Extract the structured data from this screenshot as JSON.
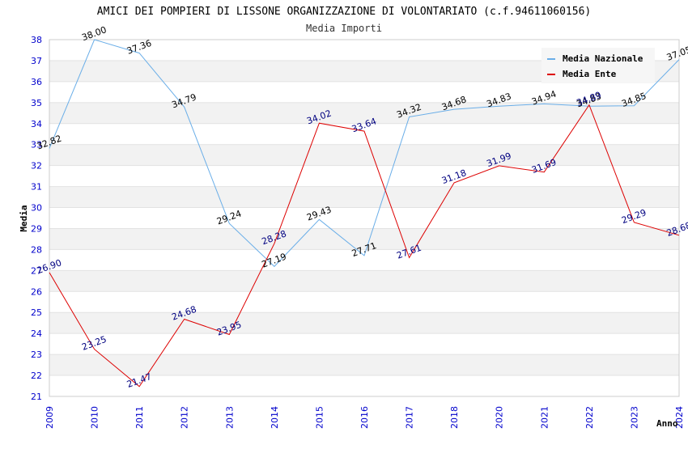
{
  "chart_data": {
    "type": "line",
    "title": "AMICI DEI POMPIERI DI LISSONE ORGANIZZAZIONE DI VOLONTARIATO (c.f.94611060156)",
    "subtitle": "Media Importi",
    "xlabel": "Anno",
    "ylabel": "Media",
    "categories": [
      "2009",
      "2010",
      "2011",
      "2012",
      "2013",
      "2014",
      "2015",
      "2016",
      "2017",
      "2018",
      "2020",
      "2021",
      "2022",
      "2023",
      "2024"
    ],
    "ylim": [
      21,
      38
    ],
    "yticks": [
      21,
      22,
      23,
      24,
      25,
      26,
      27,
      28,
      29,
      30,
      31,
      32,
      33,
      34,
      35,
      36,
      37,
      38
    ],
    "grid": "horizontal alternating bands",
    "legend_position": "top-right",
    "series": [
      {
        "name": "Media Nazionale",
        "color": "#6aaee8",
        "label_color": "#000000",
        "values": [
          32.82,
          38.0,
          37.36,
          34.79,
          29.24,
          27.19,
          29.43,
          27.71,
          34.32,
          34.68,
          34.83,
          34.94,
          34.83,
          34.85,
          37.05
        ],
        "labels": [
          "32.82",
          "38.00",
          "37.36",
          "34.79",
          "29.24",
          "27.19",
          "29.43",
          "27.71",
          "34.32",
          "34.68",
          "34.83",
          "34.94",
          "34.83",
          "34.85",
          "37.05"
        ]
      },
      {
        "name": "Media Ente",
        "color": "#dd0000",
        "label_color": "#000080",
        "values": [
          26.9,
          23.25,
          21.47,
          24.68,
          23.95,
          28.28,
          34.02,
          33.64,
          27.61,
          31.18,
          31.99,
          31.69,
          34.89,
          29.29,
          28.68
        ],
        "labels": [
          "26.90",
          "23.25",
          "21.47",
          "24.68",
          "23.95",
          "28.28",
          "34.02",
          "33.64",
          "27.61",
          "31.18",
          "31.99",
          "31.69",
          "34.89",
          "29.29",
          "28.68"
        ]
      }
    ]
  }
}
